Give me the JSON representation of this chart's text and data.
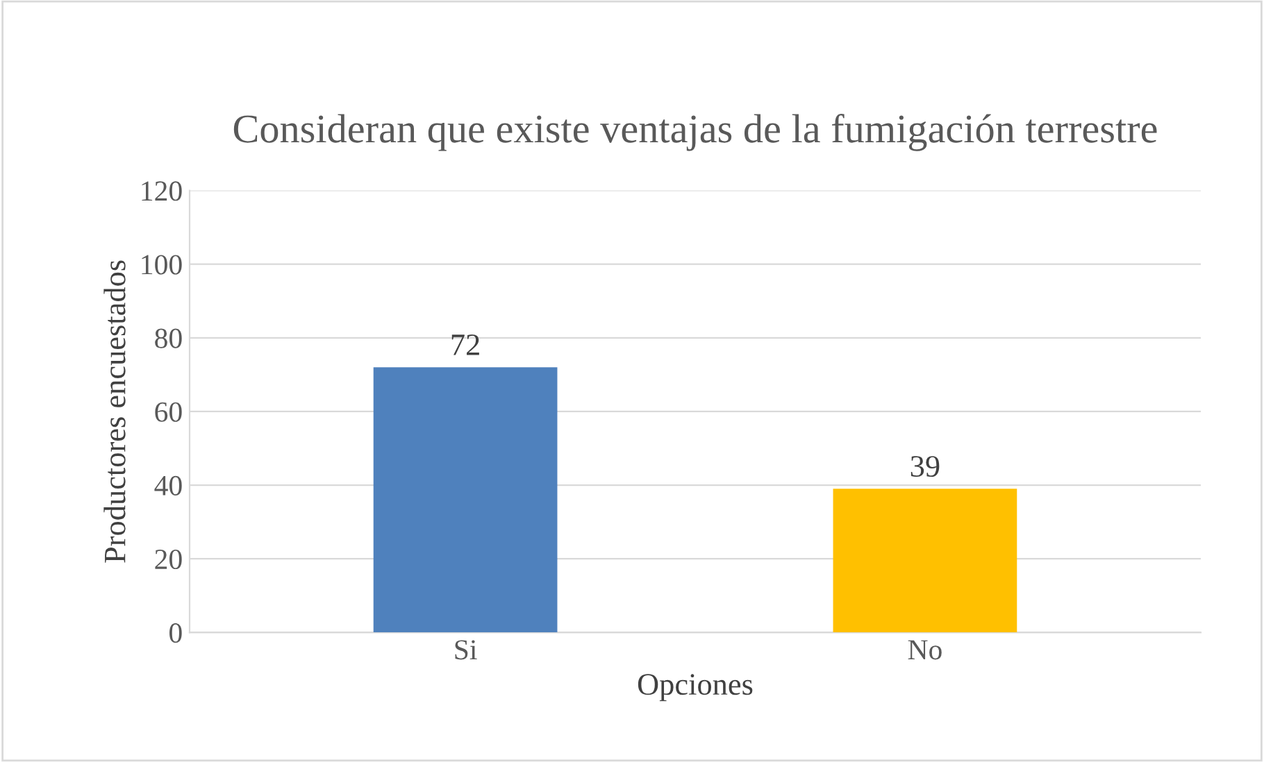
{
  "chart_data": {
    "type": "bar",
    "title": "Consideran que existe ventajas de la fumigación terrestre",
    "xlabel": "Opciones",
    "ylabel": "Productores encuestados",
    "categories": [
      "Si",
      "No"
    ],
    "values": [
      72,
      39
    ],
    "colors": [
      "#4f81bd",
      "#ffc000"
    ],
    "ylim": [
      0,
      120
    ],
    "yticks": [
      0,
      20,
      40,
      60,
      80,
      100,
      120
    ],
    "grid": "y",
    "data_labels": true
  }
}
